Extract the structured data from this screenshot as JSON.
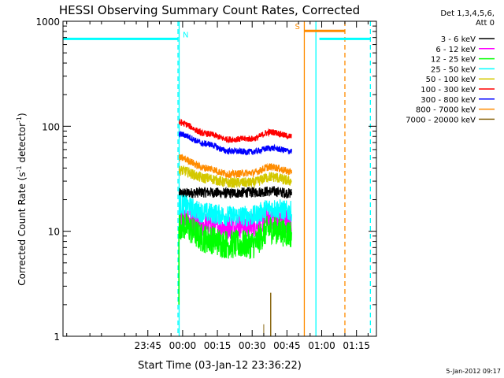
{
  "chart_data": {
    "type": "line",
    "title": "HESSI Observing Summary Count Rates, Corrected",
    "xlabel": "Start Time (03-Jan-12 23:36:22)",
    "ylabel": "Corrected Count Rate (s",
    "ylabel_exp1": "-1",
    "ylabel_mid": " detector",
    "ylabel_exp2": "-1",
    "ylabel_end": ")",
    "yscale": "log",
    "ylim": [
      1,
      1000
    ],
    "xlim_min": [
      -51.6,
      83.6
    ],
    "x_ticks": [
      {
        "min": -15,
        "label": "23:45"
      },
      {
        "min": 0,
        "label": "00:00"
      },
      {
        "min": 15,
        "label": "00:15"
      },
      {
        "min": 30,
        "label": "00:30"
      },
      {
        "min": 45,
        "label": "00:45"
      },
      {
        "min": 60,
        "label": "01:00"
      },
      {
        "min": 75,
        "label": "01:15"
      }
    ],
    "y_ticks": [
      {
        "value": 1,
        "label": "1"
      },
      {
        "value": 10,
        "label": "10"
      },
      {
        "value": 100,
        "label": "100"
      },
      {
        "value": 1000,
        "label": "1000"
      }
    ],
    "legend_header": [
      "Det 1,3,4,5,6,",
      "Att 0"
    ],
    "legend_position": "right",
    "series": [
      {
        "name": "3 - 6 keV",
        "color": "#000000",
        "t": [
          -1.5,
          10,
          20,
          30,
          38,
          47
        ],
        "v": [
          23,
          23.5,
          23,
          23.5,
          24,
          23
        ]
      },
      {
        "name": "6 - 12 keV",
        "color": "#ff00ff",
        "t": [
          -1.5,
          10,
          20,
          30,
          38,
          47
        ],
        "v": [
          13,
          11.5,
          11,
          11.5,
          13.5,
          12.5
        ]
      },
      {
        "name": "12 - 25 keV",
        "color": "#00ff00",
        "t": [
          -1.5,
          10,
          20,
          30,
          38,
          47
        ],
        "v": [
          11.5,
          8.5,
          7.5,
          7.5,
          10.5,
          9.5
        ]
      },
      {
        "name": "25 - 50 keV",
        "color": "#00ffff",
        "t": [
          -1.5,
          10,
          20,
          30,
          38,
          47
        ],
        "v": [
          18,
          15,
          14,
          14,
          16.5,
          15.5
        ]
      },
      {
        "name": "50 - 100 keV",
        "color": "#d4c800",
        "t": [
          -1.5,
          10,
          20,
          30,
          38,
          47
        ],
        "v": [
          38,
          32,
          29,
          29,
          33,
          30
        ]
      },
      {
        "name": "100 - 300 keV",
        "color": "#ff0000",
        "t": [
          -1.5,
          10,
          20,
          30,
          38,
          47
        ],
        "v": [
          108,
          85,
          75,
          76,
          88,
          80
        ]
      },
      {
        "name": "300 - 800 keV",
        "color": "#0000ff",
        "t": [
          -1.5,
          10,
          20,
          30,
          38,
          47
        ],
        "v": [
          84,
          68,
          58,
          57,
          62,
          58
        ]
      },
      {
        "name": "800 - 7000 keV",
        "color": "#ff8c00",
        "t": [
          -1.5,
          10,
          20,
          30,
          38,
          47
        ],
        "v": [
          50,
          40,
          35,
          36,
          41,
          37
        ]
      },
      {
        "name": "7000 - 20000 keV",
        "color": "#8b6914",
        "t": [],
        "v": []
      }
    ],
    "flags": [
      {
        "label": "N",
        "color": "#00ffff",
        "start_min": -51.6,
        "end_min": -2,
        "level": 680
      },
      {
        "label": "",
        "color": "#00ffff",
        "start_min": 59,
        "end_min": 81,
        "level": 680
      },
      {
        "label": "S",
        "color": "#ff8c00",
        "start_min": 52.5,
        "end_min": 70,
        "level": 810
      }
    ],
    "vlines": [
      {
        "min": -1.5,
        "color": "#00ffff",
        "style": "solid"
      },
      {
        "min": -2,
        "color": "#00ffff",
        "style": "dashed"
      },
      {
        "min": 52.5,
        "color": "#ff8c00",
        "style": "solid"
      },
      {
        "min": 57.5,
        "color": "#00ffff",
        "style": "solid"
      },
      {
        "min": 70,
        "color": "#ff8c00",
        "style": "dashed"
      },
      {
        "min": 81,
        "color": "#00ffff",
        "style": "dashed"
      }
    ]
  },
  "footer": {
    "timestamp": "5-Jan-2012 09:17"
  }
}
